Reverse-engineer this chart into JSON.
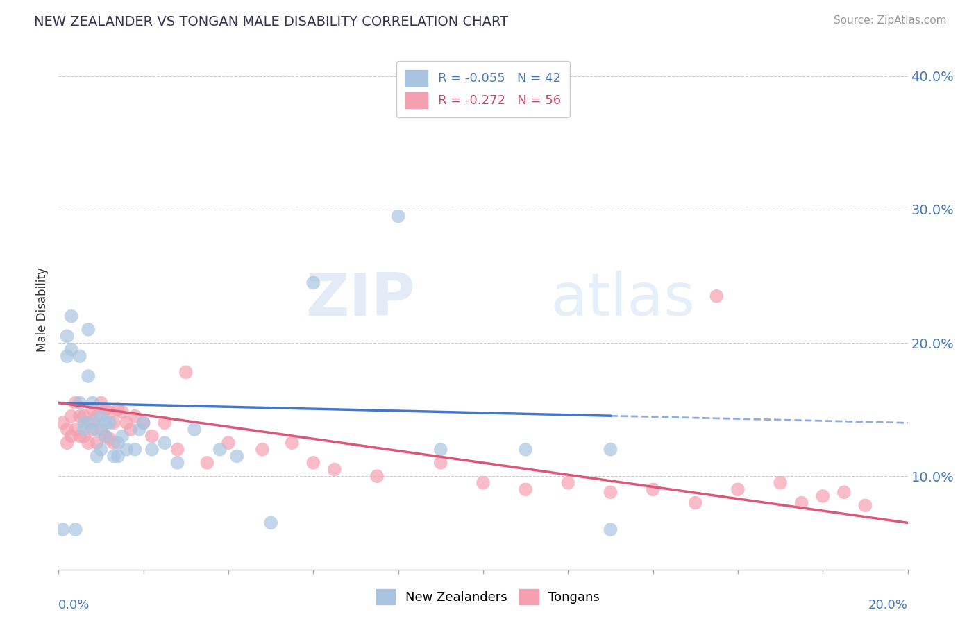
{
  "title": "NEW ZEALANDER VS TONGAN MALE DISABILITY CORRELATION CHART",
  "source": "Source: ZipAtlas.com",
  "ylabel": "Male Disability",
  "legend_nz": "New Zealanders",
  "legend_tongan": "Tongans",
  "legend_r_nz": "R = -0.055",
  "legend_n_nz": "N = 42",
  "legend_r_tongan": "R = -0.272",
  "legend_n_tongan": "N = 56",
  "xlim": [
    0.0,
    0.2
  ],
  "ylim": [
    0.03,
    0.42
  ],
  "right_yticks": [
    0.1,
    0.2,
    0.3,
    0.4
  ],
  "right_yticklabels": [
    "10.0%",
    "20.0%",
    "30.0%",
    "40.0%"
  ],
  "color_nz": "#a8c4e0",
  "color_tongan": "#f4a0b0",
  "line_color_nz": "#4477cc",
  "line_color_tongan": "#dd5577",
  "watermark_zip": "ZIP",
  "watermark_atlas": "atlas",
  "nz_line_solid_end": 0.13,
  "nz_line_x0": 0.0,
  "nz_line_y0": 0.155,
  "nz_line_x1": 0.2,
  "nz_line_y1": 0.14,
  "tongan_line_x0": 0.0,
  "tongan_line_y0": 0.155,
  "tongan_line_x1": 0.2,
  "tongan_line_y1": 0.065,
  "nz_x": [
    0.001,
    0.002,
    0.002,
    0.003,
    0.003,
    0.004,
    0.005,
    0.005,
    0.006,
    0.006,
    0.007,
    0.007,
    0.008,
    0.008,
    0.009,
    0.009,
    0.01,
    0.01,
    0.011,
    0.011,
    0.012,
    0.013,
    0.014,
    0.014,
    0.015,
    0.016,
    0.018,
    0.019,
    0.02,
    0.022,
    0.025,
    0.028,
    0.032,
    0.038,
    0.042,
    0.05,
    0.06,
    0.08,
    0.09,
    0.11,
    0.13,
    0.13
  ],
  "nz_y": [
    0.06,
    0.19,
    0.205,
    0.195,
    0.22,
    0.06,
    0.19,
    0.155,
    0.14,
    0.135,
    0.175,
    0.21,
    0.155,
    0.14,
    0.135,
    0.115,
    0.145,
    0.12,
    0.14,
    0.13,
    0.14,
    0.115,
    0.125,
    0.115,
    0.13,
    0.12,
    0.12,
    0.135,
    0.14,
    0.12,
    0.125,
    0.11,
    0.135,
    0.12,
    0.115,
    0.065,
    0.245,
    0.295,
    0.12,
    0.12,
    0.12,
    0.06
  ],
  "tongan_x": [
    0.001,
    0.002,
    0.002,
    0.003,
    0.003,
    0.004,
    0.004,
    0.005,
    0.005,
    0.006,
    0.006,
    0.007,
    0.007,
    0.008,
    0.008,
    0.009,
    0.009,
    0.01,
    0.01,
    0.011,
    0.011,
    0.012,
    0.012,
    0.013,
    0.013,
    0.014,
    0.015,
    0.016,
    0.017,
    0.018,
    0.02,
    0.022,
    0.025,
    0.028,
    0.03,
    0.035,
    0.04,
    0.048,
    0.055,
    0.06,
    0.065,
    0.075,
    0.09,
    0.1,
    0.11,
    0.12,
    0.13,
    0.14,
    0.15,
    0.155,
    0.16,
    0.17,
    0.175,
    0.18,
    0.185,
    0.19
  ],
  "tongan_y": [
    0.14,
    0.135,
    0.125,
    0.145,
    0.13,
    0.155,
    0.135,
    0.145,
    0.13,
    0.145,
    0.13,
    0.14,
    0.125,
    0.15,
    0.135,
    0.145,
    0.125,
    0.155,
    0.135,
    0.15,
    0.13,
    0.148,
    0.128,
    0.14,
    0.125,
    0.15,
    0.148,
    0.14,
    0.135,
    0.145,
    0.14,
    0.13,
    0.14,
    0.12,
    0.178,
    0.11,
    0.125,
    0.12,
    0.125,
    0.11,
    0.105,
    0.1,
    0.11,
    0.095,
    0.09,
    0.095,
    0.088,
    0.09,
    0.08,
    0.235,
    0.09,
    0.095,
    0.08,
    0.085,
    0.088,
    0.078
  ]
}
